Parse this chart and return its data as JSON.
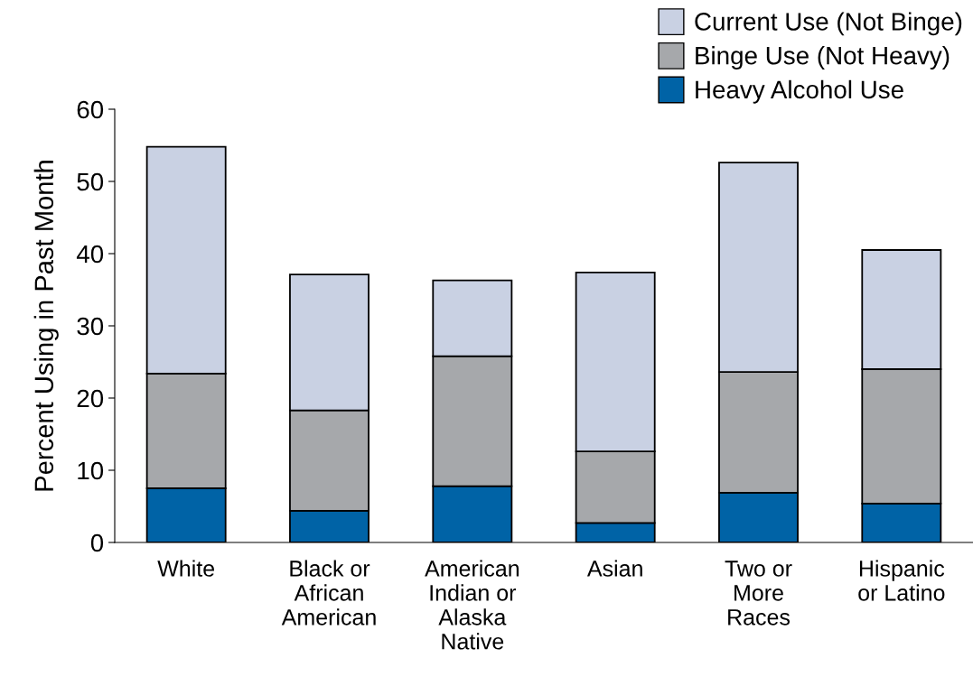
{
  "chart_data": {
    "type": "bar",
    "stacked": true,
    "ylabel": "Percent Using in Past Month",
    "categories": [
      "White",
      "Black or\nAfrican\nAmerican",
      "American\nIndian or\nAlaska\nNative",
      "Asian",
      "Two or\nMore\nRaces",
      "Hispanic\nor Latino"
    ],
    "series": [
      {
        "name": "Heavy Alcohol Use",
        "color": "#0063a6",
        "values": [
          7.5,
          4.4,
          7.8,
          2.7,
          6.9,
          5.4
        ]
      },
      {
        "name": "Binge Use (Not Heavy)",
        "color": "#a6a8ab",
        "values": [
          15.9,
          13.9,
          18.0,
          9.9,
          16.7,
          18.6
        ]
      },
      {
        "name": "Current Use (Not Binge)",
        "color": "#c9d1e3",
        "values": [
          31.4,
          18.8,
          10.5,
          24.8,
          29.0,
          16.5
        ]
      }
    ],
    "ylim": [
      0,
      60
    ],
    "yticks": [
      0,
      10,
      20,
      30,
      40,
      50,
      60
    ],
    "grid": false,
    "legend": "top right"
  }
}
